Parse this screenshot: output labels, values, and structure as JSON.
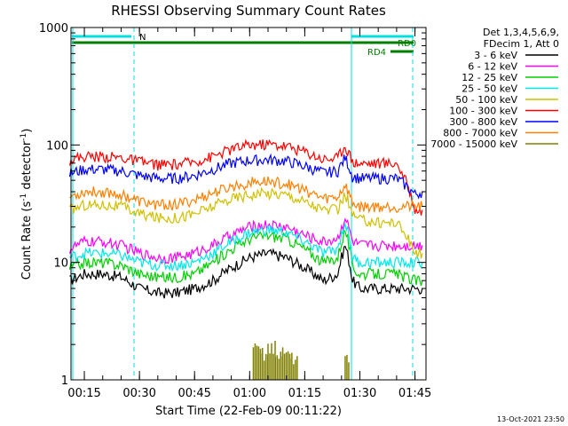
{
  "chart_data": {
    "type": "line",
    "title": "RHESSI Observing Summary Count Rates",
    "xlabel": "Start Time (22-Feb-09 00:11:22)",
    "ylabel_main": "Count Rate (s",
    "ylabel_sup1": "-1",
    "ylabel_mid": " detector",
    "ylabel_sup2": "-1",
    "ylabel_end": ")",
    "y_scale": "log",
    "ylim": [
      1,
      1000
    ],
    "xlim": [
      "00:11:22",
      "01:48:00"
    ],
    "x_ticks": [
      "00:15",
      "00:30",
      "00:45",
      "01:00",
      "01:15",
      "01:30",
      "01:45"
    ],
    "y_ticks": [
      "1",
      "10",
      "100",
      "1000"
    ],
    "legend_header": [
      "Det 1,3,4,5,6,9,",
      "FDecim 1, Att 0"
    ],
    "legend_position": "right",
    "timestamp": "13-Oct-2021 23:50",
    "flags": [
      {
        "label": "N",
        "color": "#00e0e0"
      },
      {
        "label": "RD0",
        "color": "#007f00"
      },
      {
        "label": "RD4",
        "color": "#007f00"
      }
    ],
    "series": [
      {
        "name": "3 - 6 keV",
        "color": "#000000",
        "x": [
          "00:11",
          "00:15",
          "00:20",
          "00:25",
          "00:30",
          "00:35",
          "00:40",
          "00:45",
          "00:50",
          "00:55",
          "01:00",
          "01:05",
          "01:10",
          "01:15",
          "01:20",
          "01:24",
          "01:26",
          "01:28",
          "01:30",
          "01:35",
          "01:40",
          "01:45",
          "01:47"
        ],
        "values": [
          7,
          8,
          8,
          7.5,
          6,
          5.5,
          5.5,
          6,
          7,
          9,
          11,
          12,
          11,
          9,
          7,
          8,
          14,
          7,
          6,
          6,
          6,
          6,
          6
        ]
      },
      {
        "name": "6 - 12 keV",
        "color": "#ff00ff",
        "x": [
          "00:11",
          "00:15",
          "00:20",
          "00:25",
          "00:30",
          "00:35",
          "00:40",
          "00:45",
          "00:50",
          "00:55",
          "01:00",
          "01:05",
          "01:10",
          "01:15",
          "01:20",
          "01:24",
          "01:26",
          "01:28",
          "01:30",
          "01:35",
          "01:40",
          "01:45",
          "01:47"
        ],
        "values": [
          13,
          15,
          15,
          14,
          12,
          11,
          11,
          12,
          14,
          17,
          20,
          21,
          20,
          17,
          15,
          16,
          24,
          15,
          14,
          14,
          14,
          14,
          14
        ]
      },
      {
        "name": "12 - 25 keV",
        "color": "#00d000",
        "x": [
          "00:11",
          "00:15",
          "00:20",
          "00:25",
          "00:30",
          "00:35",
          "00:40",
          "00:45",
          "00:50",
          "00:55",
          "01:00",
          "01:05",
          "01:10",
          "01:15",
          "01:20",
          "01:24",
          "01:26",
          "01:28",
          "01:30",
          "01:35",
          "01:40",
          "01:45",
          "01:47"
        ],
        "values": [
          9,
          10,
          10,
          9.5,
          8,
          7.5,
          7.5,
          8,
          10,
          13,
          16,
          17,
          16,
          13,
          10,
          11,
          19,
          9,
          8,
          8,
          8,
          7,
          7
        ]
      },
      {
        "name": "25 - 50 keV",
        "color": "#00e8e8",
        "x": [
          "00:11",
          "00:15",
          "00:20",
          "00:25",
          "00:30",
          "00:35",
          "00:40",
          "00:45",
          "00:50",
          "00:55",
          "01:00",
          "01:05",
          "01:10",
          "01:15",
          "01:20",
          "01:24",
          "01:26",
          "01:28",
          "01:30",
          "01:35",
          "01:40",
          "01:45",
          "01:47"
        ],
        "values": [
          11,
          12,
          12,
          11.5,
          10,
          9.5,
          9.5,
          10,
          12,
          15,
          18,
          19,
          18,
          15,
          12,
          13,
          22,
          11,
          10,
          10,
          10,
          10,
          10
        ]
      },
      {
        "name": "50 - 100 keV",
        "color": "#d0c000",
        "x": [
          "00:11",
          "00:15",
          "00:20",
          "00:25",
          "00:30",
          "00:35",
          "00:40",
          "00:45",
          "00:50",
          "00:55",
          "01:00",
          "01:05",
          "01:10",
          "01:15",
          "01:20",
          "01:24",
          "01:26",
          "01:28",
          "01:30",
          "01:35",
          "01:40",
          "01:45",
          "01:47"
        ],
        "values": [
          28,
          31,
          31,
          30,
          26,
          24,
          24,
          26,
          30,
          35,
          38,
          39,
          38,
          33,
          28,
          28,
          38,
          25,
          23,
          22,
          22,
          12,
          12
        ]
      },
      {
        "name": "100 - 300 keV",
        "color": "#ff0000",
        "x": [
          "00:11",
          "00:15",
          "00:20",
          "00:25",
          "00:30",
          "00:35",
          "00:40",
          "00:45",
          "00:50",
          "00:55",
          "01:00",
          "01:05",
          "01:10",
          "01:15",
          "01:20",
          "01:24",
          "01:26",
          "01:28",
          "01:30",
          "01:35",
          "01:40",
          "01:45",
          "01:47"
        ],
        "values": [
          75,
          80,
          80,
          78,
          72,
          68,
          68,
          72,
          80,
          92,
          100,
          102,
          98,
          88,
          76,
          78,
          100,
          72,
          70,
          70,
          70,
          28,
          28
        ]
      },
      {
        "name": "300 - 800 keV",
        "color": "#0000ff",
        "x": [
          "00:11",
          "00:15",
          "00:20",
          "00:25",
          "00:30",
          "00:35",
          "00:40",
          "00:45",
          "00:50",
          "00:55",
          "01:00",
          "01:05",
          "01:10",
          "01:15",
          "01:20",
          "01:24",
          "01:26",
          "01:28",
          "01:30",
          "01:35",
          "01:40",
          "01:45",
          "01:47"
        ],
        "values": [
          57,
          62,
          62,
          60,
          55,
          52,
          52,
          55,
          62,
          70,
          74,
          75,
          73,
          66,
          58,
          60,
          78,
          54,
          52,
          52,
          52,
          38,
          40
        ]
      },
      {
        "name": "800 - 7000 keV",
        "color": "#ff8000",
        "x": [
          "00:11",
          "00:15",
          "00:20",
          "00:25",
          "00:30",
          "00:35",
          "00:40",
          "00:45",
          "00:50",
          "00:55",
          "01:00",
          "01:05",
          "01:10",
          "01:15",
          "01:20",
          "01:24",
          "01:26",
          "01:28",
          "01:30",
          "01:35",
          "01:40",
          "01:45",
          "01:47"
        ],
        "values": [
          36,
          40,
          40,
          38,
          33,
          31,
          31,
          34,
          39,
          44,
          48,
          49,
          47,
          41,
          35,
          36,
          46,
          32,
          30,
          30,
          30,
          30,
          30
        ]
      },
      {
        "name": "7000 - 15000 keV",
        "color": "#808000",
        "x": [
          "01:01",
          "01:03",
          "01:05",
          "01:07",
          "01:09",
          "01:11",
          "01:13",
          "01:26",
          "01:27"
        ],
        "values": [
          1.8,
          1.7,
          1.9,
          1.6,
          1.8,
          1.5,
          1.6,
          1.6,
          1.7
        ]
      }
    ]
  }
}
